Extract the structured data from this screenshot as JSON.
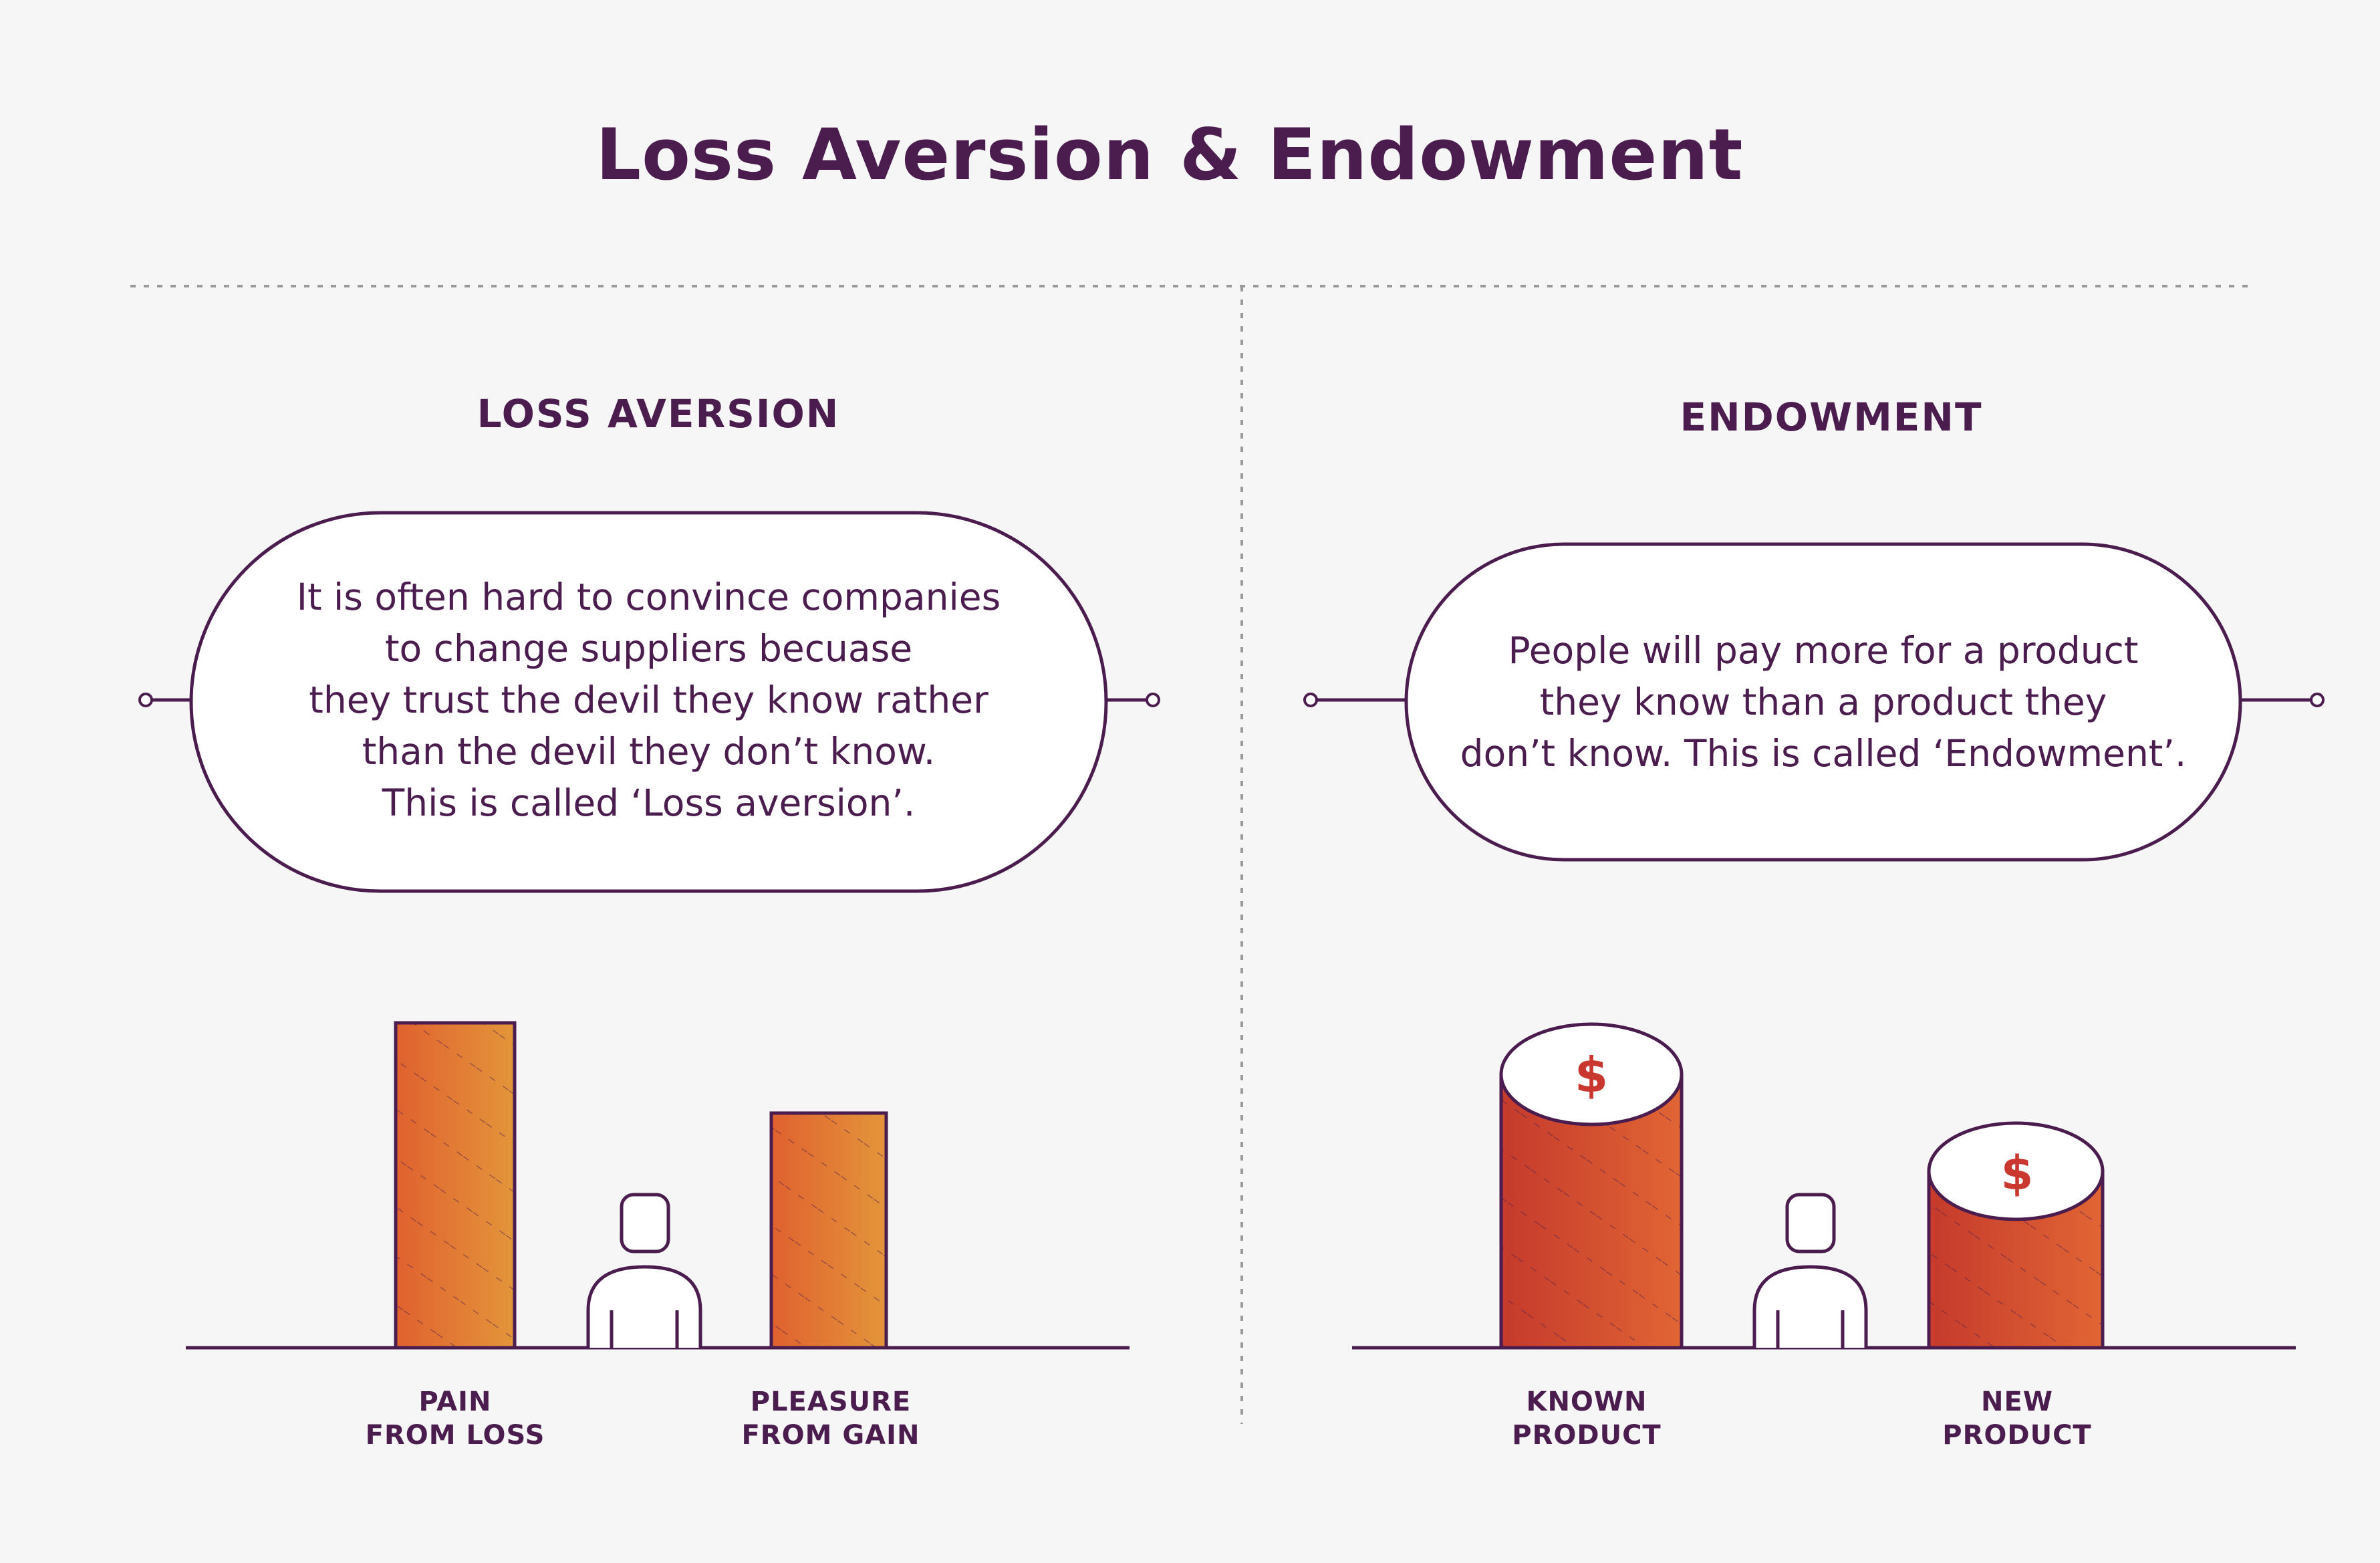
{
  "title": "Loss Aversion & Endowment",
  "colors": {
    "ink": "#4b1d4f",
    "background": "#f6f6f6",
    "bar_orange_start": "#e0612f",
    "bar_orange_end": "#e3953a",
    "cylinder_red_start": "#c53a2c",
    "cylinder_red_end": "#e16534",
    "dollar": "#c9372e"
  },
  "loss_aversion": {
    "heading": "LOSS AVERSION",
    "bubble_lines": [
      "It is often hard to convince companies",
      "to change suppliers becuase",
      "they trust the devil they know rather",
      "than the devil they don’t know.",
      "This is called ‘Loss aversion’."
    ],
    "bars": [
      {
        "label_line1": "PAIN",
        "label_line2": "FROM LOSS"
      },
      {
        "label_line1": "PLEASURE",
        "label_line2": "FROM GAIN"
      }
    ],
    "person_icon": "person-icon"
  },
  "endowment": {
    "heading": "ENDOWMENT",
    "bubble_lines": [
      "People will pay more for a product",
      "they know than a product they",
      "don’t know. This is called ‘Endowment’."
    ],
    "cylinders": [
      {
        "label_line1": "KNOWN",
        "label_line2": "PRODUCT",
        "symbol": "$"
      },
      {
        "label_line1": "NEW",
        "label_line2": "PRODUCT",
        "symbol": "$"
      }
    ],
    "person_icon": "person-icon"
  }
}
